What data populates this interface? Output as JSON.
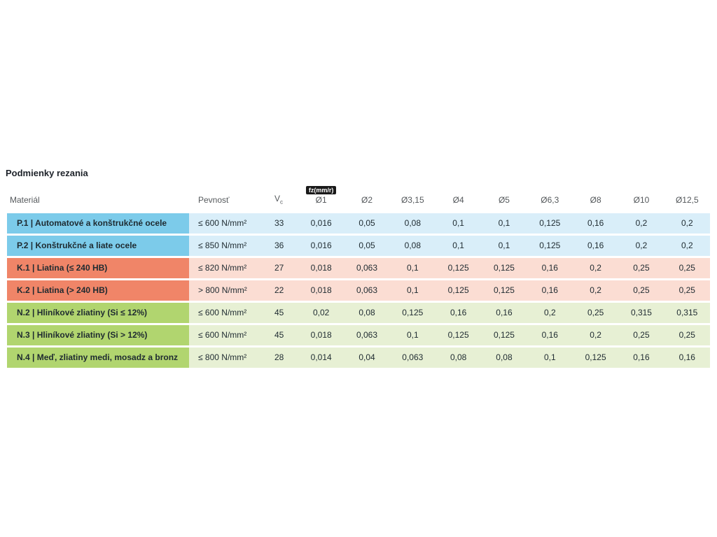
{
  "page": {
    "title": "Podmienky rezania"
  },
  "table": {
    "fz_badge": "fz(mm/r)",
    "headers": {
      "material": "Materiál",
      "strength": "Pevnosť",
      "vc_symbol": "V",
      "vc_subscript": "c",
      "diameters": [
        "Ø1",
        "Ø2",
        "Ø3,15",
        "Ø4",
        "Ø5",
        "Ø6,3",
        "Ø8",
        "Ø10",
        "Ø12,5"
      ]
    },
    "rows": [
      {
        "group": "P",
        "material": "P.1 | Automatové a konštrukčné ocele",
        "strength": "≤ 600 N/mm²",
        "vc": "33",
        "values": [
          "0,016",
          "0,05",
          "0,08",
          "0,1",
          "0,1",
          "0,125",
          "0,16",
          "0,2",
          "0,2"
        ]
      },
      {
        "group": "P",
        "material": "P.2 | Konštrukčné a liate ocele",
        "strength": "≤ 850 N/mm²",
        "vc": "36",
        "values": [
          "0,016",
          "0,05",
          "0,08",
          "0,1",
          "0,1",
          "0,125",
          "0,16",
          "0,2",
          "0,2"
        ]
      },
      {
        "group": "K",
        "material": "K.1 | Liatina (≤ 240 HB)",
        "strength": "≤ 820 N/mm²",
        "vc": "27",
        "values": [
          "0,018",
          "0,063",
          "0,1",
          "0,125",
          "0,125",
          "0,16",
          "0,2",
          "0,25",
          "0,25"
        ]
      },
      {
        "group": "K",
        "material": "K.2 | Liatina (> 240 HB)",
        "strength": "> 800 N/mm²",
        "vc": "22",
        "values": [
          "0,018",
          "0,063",
          "0,1",
          "0,125",
          "0,125",
          "0,16",
          "0,2",
          "0,25",
          "0,25"
        ]
      },
      {
        "group": "N",
        "material": "N.2 | Hliníkové zliatiny (Si ≤ 12%)",
        "strength": "≤ 600 N/mm²",
        "vc": "45",
        "values": [
          "0,02",
          "0,08",
          "0,125",
          "0,16",
          "0,16",
          "0,2",
          "0,25",
          "0,315",
          "0,315"
        ]
      },
      {
        "group": "N",
        "material": "N.3 | Hliníkové zliatiny (Si > 12%)",
        "strength": "≤ 600 N/mm²",
        "vc": "45",
        "values": [
          "0,018",
          "0,063",
          "0,1",
          "0,125",
          "0,125",
          "0,16",
          "0,2",
          "0,25",
          "0,25"
        ]
      },
      {
        "group": "N",
        "material": "N.4 | Meď, zliatiny medi, mosadz a bronz",
        "strength": "≤ 800 N/mm²",
        "vc": "28",
        "values": [
          "0,014",
          "0,04",
          "0,063",
          "0,08",
          "0,08",
          "0,1",
          "0,125",
          "0,16",
          "0,16"
        ]
      }
    ]
  },
  "colors": {
    "group_P_label_bg": "#7ccbea",
    "group_P_row_bg": "#d9eef9",
    "group_K_label_bg": "#f08568",
    "group_K_row_bg": "#fbddd3",
    "group_N_label_bg": "#b1d56f",
    "group_N_row_bg": "#e7f0d4",
    "fz_badge_bg": "#1a1a1a",
    "fz_badge_text": "#ffffff",
    "header_text": "#55595c",
    "cell_text": "#1e2a30"
  }
}
